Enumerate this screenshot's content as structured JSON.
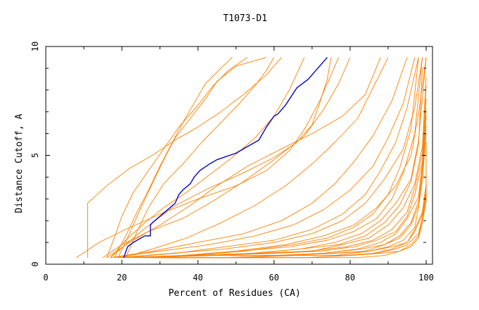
{
  "chart_data": {
    "type": "line",
    "title": "T1073-D1",
    "xlabel": "Percent of Residues (CA)",
    "ylabel": "Distance Cutoff, A",
    "xlim": [
      0,
      100
    ],
    "ylim": [
      0,
      10
    ],
    "xticks": [
      0,
      20,
      40,
      60,
      80,
      100
    ],
    "yticks": [
      0,
      5,
      10
    ],
    "grid": false,
    "legend": "none",
    "colors": {
      "highlight": "#0000cc",
      "others": "#ff8000",
      "axes": "#000000"
    },
    "highlight": {
      "x": [
        20.5,
        21.5,
        23,
        26,
        27.5,
        27.5,
        28,
        30,
        32,
        34,
        35,
        36,
        38,
        39,
        40.5,
        43,
        45,
        50,
        53,
        56,
        58,
        60,
        61,
        63,
        66,
        69,
        72,
        74
      ],
      "y": [
        0.3,
        0.8,
        1.0,
        1.3,
        1.3,
        1.8,
        1.9,
        2.2,
        2.5,
        2.8,
        3.2,
        3.4,
        3.7,
        4.0,
        4.3,
        4.6,
        4.8,
        5.1,
        5.4,
        5.7,
        6.3,
        6.8,
        6.9,
        7.3,
        8.1,
        8.5,
        9.1,
        9.5
      ]
    },
    "series": [
      {
        "x": [
          16,
          18,
          20,
          23,
          27,
          31,
          35,
          40,
          44,
          48,
          53
        ],
        "y": [
          0.3,
          1.2,
          2.2,
          3.3,
          4.3,
          5.3,
          6.3,
          7.3,
          8.2,
          8.9,
          9.5
        ]
      },
      {
        "x": [
          18,
          21,
          24,
          27,
          30,
          33,
          36,
          39,
          42,
          46,
          49
        ],
        "y": [
          0.3,
          1.3,
          2.4,
          3.4,
          4.5,
          5.5,
          6.5,
          7.4,
          8.3,
          9.0,
          9.5
        ]
      },
      {
        "x": [
          19,
          22,
          25,
          28,
          31,
          34,
          38,
          42,
          45,
          50,
          58
        ],
        "y": [
          0.3,
          1.4,
          2.6,
          3.7,
          4.8,
          5.8,
          6.7,
          7.6,
          8.4,
          9.1,
          9.5
        ]
      },
      {
        "x": [
          21,
          24,
          27,
          31,
          36,
          41,
          46,
          51,
          55,
          58,
          60
        ],
        "y": [
          0.3,
          1.5,
          2.6,
          3.7,
          4.6,
          5.6,
          6.5,
          7.4,
          8.2,
          8.9,
          9.5
        ]
      },
      {
        "x": [
          17,
          21,
          26,
          31,
          37,
          43,
          49,
          55,
          60,
          64,
          68
        ],
        "y": [
          0.3,
          1.1,
          1.9,
          2.6,
          3.3,
          4.1,
          4.9,
          5.8,
          6.8,
          8.0,
          9.5
        ]
      },
      {
        "x": [
          11,
          11,
          16,
          22,
          28,
          34,
          40,
          46,
          52,
          58,
          62
        ],
        "y": [
          0.3,
          2.8,
          3.6,
          4.4,
          5.0,
          5.7,
          6.3,
          7.0,
          7.8,
          8.7,
          9.5
        ]
      },
      {
        "x": [
          8,
          14,
          21,
          30,
          40,
          50,
          58,
          64,
          68,
          72,
          77
        ],
        "y": [
          0.3,
          1.0,
          1.6,
          2.3,
          3.0,
          3.6,
          4.3,
          5.2,
          6.2,
          7.5,
          9.5
        ]
      },
      {
        "x": [
          15,
          20,
          27,
          36,
          44,
          52,
          60,
          68,
          73,
          77,
          80
        ],
        "y": [
          0.3,
          0.9,
          1.5,
          2.1,
          2.9,
          3.8,
          4.8,
          5.9,
          7.1,
          8.3,
          9.5
        ]
      },
      {
        "x": [
          16,
          22,
          30,
          38,
          45,
          53,
          62,
          70,
          78,
          84,
          88
        ],
        "y": [
          0.3,
          1.0,
          1.8,
          2.7,
          3.6,
          4.5,
          5.3,
          6.0,
          6.8,
          7.8,
          9.5
        ]
      },
      {
        "x": [
          17,
          25,
          34,
          43,
          52,
          60,
          66,
          70,
          72,
          74,
          75
        ],
        "y": [
          0.3,
          1.5,
          2.7,
          3.5,
          4.2,
          4.9,
          5.6,
          6.4,
          7.4,
          8.5,
          9.5
        ]
      },
      {
        "x": [
          20,
          28,
          37,
          46,
          55,
          63,
          70,
          76,
          82,
          86,
          90
        ],
        "y": [
          0.3,
          0.7,
          1.2,
          1.9,
          2.7,
          3.6,
          4.6,
          5.6,
          6.7,
          8.1,
          9.5
        ]
      },
      {
        "x": [
          17,
          28,
          40,
          52,
          62,
          70,
          76,
          81,
          86,
          91,
          95
        ],
        "y": [
          0.3,
          0.6,
          1.0,
          1.4,
          2.0,
          2.8,
          3.7,
          4.7,
          5.9,
          7.5,
          9.5
        ]
      },
      {
        "x": [
          18,
          30,
          43,
          55,
          65,
          73,
          80,
          86,
          90,
          94,
          97
        ],
        "y": [
          0.3,
          0.6,
          0.9,
          1.3,
          1.8,
          2.5,
          3.4,
          4.5,
          5.8,
          7.4,
          9.5
        ]
      },
      {
        "x": [
          20,
          34,
          47,
          60,
          70,
          78,
          84,
          88,
          92,
          95,
          98
        ],
        "y": [
          0.3,
          0.5,
          0.8,
          1.1,
          1.6,
          2.3,
          3.2,
          4.3,
          5.6,
          7.2,
          9.5
        ]
      },
      {
        "x": [
          19,
          33,
          47,
          60,
          70,
          78,
          84,
          89,
          94,
          97,
          99
        ],
        "y": [
          0.3,
          0.5,
          0.7,
          1.0,
          1.4,
          2.0,
          2.8,
          3.9,
          5.3,
          7.2,
          9.5
        ]
      },
      {
        "x": [
          21,
          36,
          50,
          63,
          73,
          81,
          87,
          92,
          96,
          98,
          100
        ],
        "y": [
          0.3,
          0.4,
          0.6,
          0.9,
          1.3,
          1.8,
          2.6,
          3.6,
          5.0,
          6.9,
          9.5
        ]
      },
      {
        "x": [
          22,
          38,
          52,
          65,
          74,
          81,
          86,
          90,
          93,
          96,
          98
        ],
        "y": [
          0.3,
          0.4,
          0.6,
          0.9,
          1.2,
          1.7,
          2.3,
          3.2,
          4.4,
          6.2,
          9.5
        ]
      },
      {
        "x": [
          20,
          36,
          51,
          64,
          74,
          81,
          87,
          91,
          94,
          97,
          99
        ],
        "y": [
          0.3,
          0.4,
          0.6,
          0.8,
          1.1,
          1.5,
          2.1,
          3.0,
          4.2,
          6.0,
          9.5
        ]
      },
      {
        "x": [
          23,
          40,
          55,
          67,
          76,
          83,
          88,
          92,
          96,
          98,
          100
        ],
        "y": [
          0.3,
          0.4,
          0.5,
          0.7,
          1.0,
          1.4,
          2.0,
          2.8,
          3.9,
          5.7,
          9.5
        ]
      },
      {
        "x": [
          21,
          38,
          54,
          67,
          77,
          84,
          89,
          93,
          96,
          98,
          99
        ],
        "y": [
          0.3,
          0.4,
          0.5,
          0.7,
          0.9,
          1.3,
          1.9,
          2.7,
          3.8,
          5.5,
          9.0
        ]
      },
      {
        "x": [
          24,
          42,
          57,
          70,
          78,
          85,
          90,
          94,
          97,
          99,
          100
        ],
        "y": [
          0.3,
          0.4,
          0.5,
          0.6,
          0.9,
          1.2,
          1.8,
          2.6,
          3.7,
          5.4,
          8.6
        ]
      },
      {
        "x": [
          22,
          40,
          56,
          69,
          79,
          86,
          91,
          95,
          97,
          99,
          100
        ],
        "y": [
          0.3,
          0.4,
          0.5,
          0.6,
          0.8,
          1.1,
          1.6,
          2.4,
          3.5,
          5.1,
          8.2
        ]
      },
      {
        "x": [
          25,
          44,
          60,
          72,
          81,
          87,
          92,
          95,
          97,
          99,
          100
        ],
        "y": [
          0.3,
          0.4,
          0.5,
          0.6,
          0.8,
          1.1,
          1.5,
          2.2,
          3.2,
          4.7,
          7.6
        ]
      },
      {
        "x": [
          26,
          45,
          61,
          73,
          82,
          88,
          92,
          95,
          98,
          99,
          100
        ],
        "y": [
          0.3,
          0.4,
          0.4,
          0.5,
          0.7,
          1.0,
          1.4,
          2.1,
          3.1,
          4.6,
          7.1
        ]
      },
      {
        "x": [
          24,
          43,
          60,
          73,
          83,
          89,
          93,
          96,
          98,
          99,
          100
        ],
        "y": [
          0.3,
          0.4,
          0.4,
          0.5,
          0.7,
          0.9,
          1.3,
          1.9,
          2.9,
          4.4,
          6.8
        ]
      },
      {
        "x": [
          27,
          47,
          63,
          75,
          84,
          89,
          93,
          96,
          98,
          99,
          100
        ],
        "y": [
          0.3,
          0.3,
          0.4,
          0.5,
          0.6,
          0.9,
          1.2,
          1.8,
          2.7,
          4.1,
          6.4
        ]
      },
      {
        "x": [
          28,
          48,
          64,
          76,
          85,
          90,
          94,
          97,
          98,
          99,
          100
        ],
        "y": [
          0.3,
          0.3,
          0.4,
          0.5,
          0.6,
          0.8,
          1.1,
          1.7,
          2.6,
          3.9,
          6.0
        ]
      },
      {
        "x": [
          26,
          46,
          63,
          76,
          85,
          91,
          95,
          97,
          99,
          100,
          100
        ],
        "y": [
          0.3,
          0.3,
          0.4,
          0.4,
          0.6,
          0.8,
          1.0,
          1.6,
          2.4,
          3.7,
          5.6
        ]
      },
      {
        "x": [
          29,
          50,
          66,
          78,
          86,
          91,
          95,
          97,
          99,
          100,
          100
        ],
        "y": [
          0.3,
          0.3,
          0.4,
          0.4,
          0.5,
          0.7,
          1.0,
          1.5,
          2.3,
          3.5,
          5.2
        ]
      },
      {
        "x": [
          30,
          52,
          68,
          79,
          87,
          92,
          95,
          98,
          99,
          100,
          100
        ],
        "y": [
          0.3,
          0.3,
          0.3,
          0.4,
          0.5,
          0.7,
          0.9,
          1.4,
          2.2,
          3.3,
          4.8
        ]
      },
      {
        "x": [
          31,
          53,
          69,
          80,
          88,
          93,
          96,
          98,
          99,
          100,
          100
        ],
        "y": [
          0.3,
          0.3,
          0.3,
          0.4,
          0.5,
          0.6,
          0.9,
          1.3,
          2.0,
          3.1,
          4.4
        ]
      },
      {
        "x": [
          32,
          55,
          71,
          82,
          89,
          93,
          96,
          98,
          99,
          100,
          100
        ],
        "y": [
          0.3,
          0.3,
          0.3,
          0.3,
          0.4,
          0.6,
          0.8,
          1.2,
          1.9,
          2.9,
          4.0
        ]
      }
    ]
  }
}
